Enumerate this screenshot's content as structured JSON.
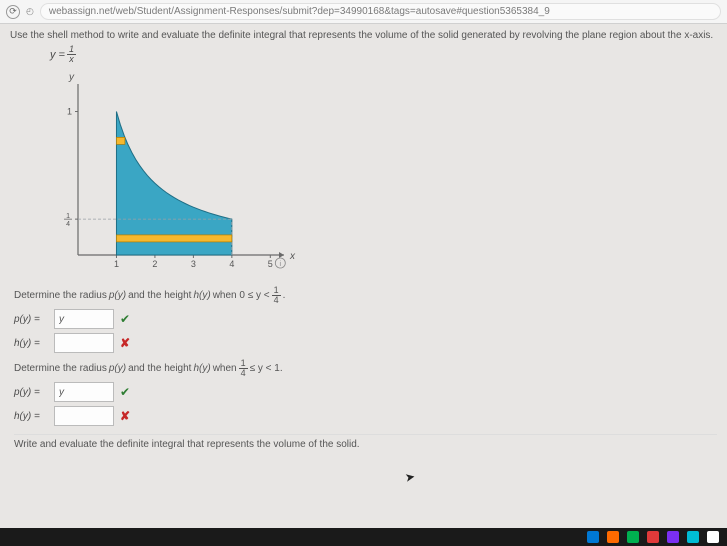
{
  "browser": {
    "url": "webassign.net/web/Student/Assignment-Responses/submit?dep=34990168&tags=autosave#question5365384_9"
  },
  "instruction": "Use the shell method to write and evaluate the definite integral that represents the volume of the solid generated by revolving the plane region about the x-axis.",
  "equation": {
    "lhs": "y =",
    "num": "1",
    "den": "x"
  },
  "graph": {
    "y_label": "y",
    "x_label": "x",
    "y_ticks": [
      {
        "label": "1",
        "value": 1
      },
      {
        "label_frac": {
          "num": "1",
          "den": "4"
        },
        "value": 0.25
      }
    ],
    "x_ticks": [
      "1",
      "2",
      "3",
      "4",
      "5"
    ],
    "xlim": [
      0,
      5.2
    ],
    "ylim": [
      0,
      1.15
    ],
    "region_color": "#3aa6c4",
    "region_border": "#1f6e85",
    "shell_color": "#f5b82e",
    "axis_color": "#6a6a6a",
    "dashed_color": "#9aa0a6",
    "background": "#e8e6e4"
  },
  "sections": [
    {
      "prompt_prefix": "Determine the radius ",
      "p_label": "p(y)",
      "mid": " and the height ",
      "h_label": "h(y)",
      "when": " when  0 ≤ y < ",
      "bound_frac": {
        "num": "1",
        "den": "4"
      },
      "suffix": ".",
      "rows": [
        {
          "label": "p(y)  =",
          "value": "y",
          "mark": "correct"
        },
        {
          "label": "h(y)  =",
          "value": "",
          "mark": "wrong"
        }
      ]
    },
    {
      "prompt_prefix": "Determine the radius ",
      "p_label": "p(y)",
      "mid": " and the height ",
      "h_label": "h(y)",
      "when": " when ",
      "bound_frac": {
        "num": "1",
        "den": "4"
      },
      "suffix2": " ≤ y < 1.",
      "rows": [
        {
          "label": "p(y)  =",
          "value": "y",
          "mark": "correct"
        },
        {
          "label": "h(y)  =",
          "value": "",
          "mark": "wrong"
        }
      ]
    }
  ],
  "final": "Write and evaluate the definite integral that represents the volume of the solid.",
  "taskbar_colors": [
    "#0078d4",
    "#ff6a00",
    "#00b050",
    "#e03a3a",
    "#7b2ff2",
    "#00bcd4",
    "#ffffff"
  ]
}
